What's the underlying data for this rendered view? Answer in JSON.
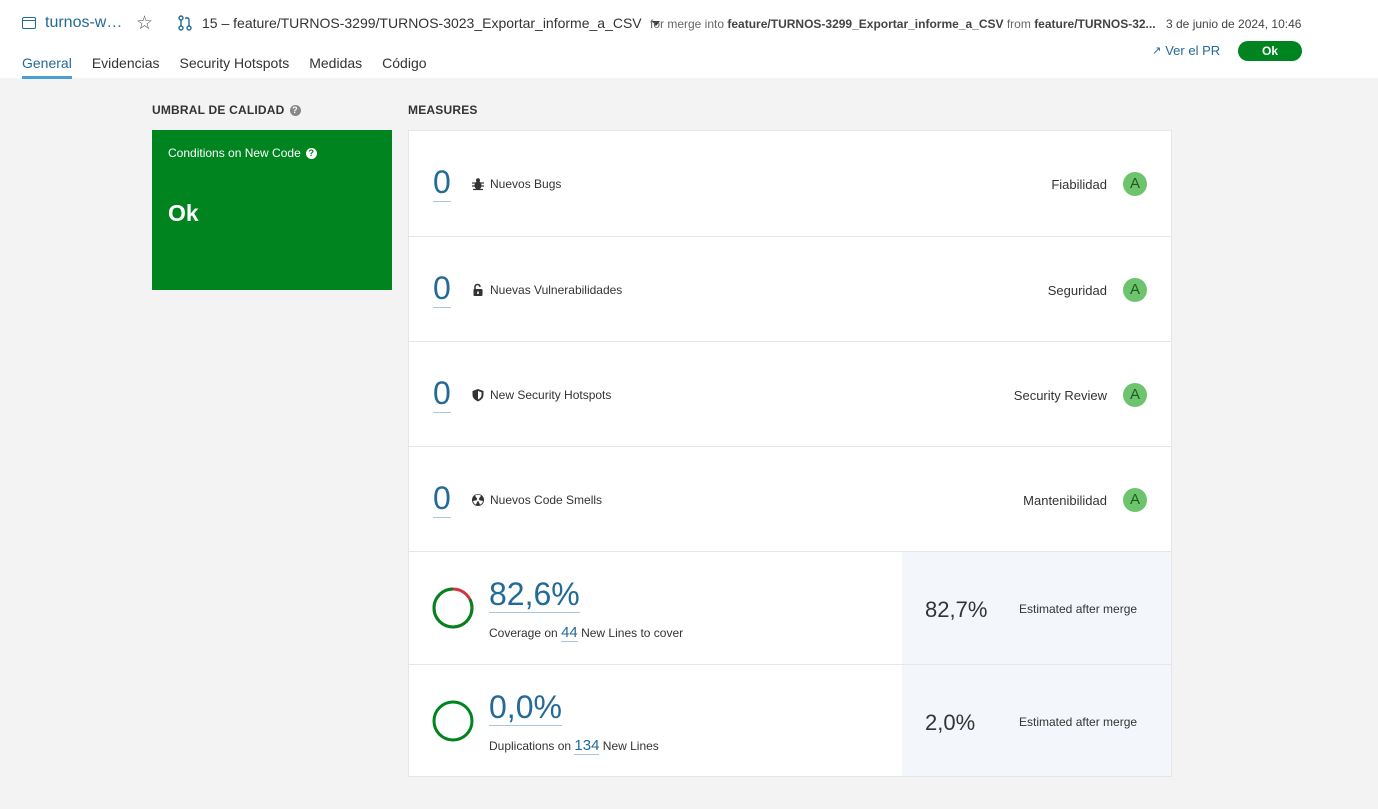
{
  "header": {
    "project_name": "turnos-w…",
    "branch_label": "15 – feature/TURNOS-3299/TURNOS-3023_Exportar_informe_a_CSV",
    "merge_prefix": "for merge into",
    "merge_target": "feature/TURNOS-3299_Exportar_informe_a_CSV",
    "merge_from_prefix": "from",
    "merge_source": "feature/TURNOS-32...",
    "date": "3 de junio de 2024, 10:46",
    "view_pr": "Ver el PR",
    "status": "Ok"
  },
  "tabs": [
    {
      "label": "General"
    },
    {
      "label": "Evidencias"
    },
    {
      "label": "Security Hotspots"
    },
    {
      "label": "Medidas"
    },
    {
      "label": "Código"
    }
  ],
  "quality_gate": {
    "title": "UMBRAL DE CALIDAD",
    "conditions_label": "Conditions on New Code",
    "status": "Ok"
  },
  "measures": {
    "title": "MEASURES",
    "rows": [
      {
        "value": "0",
        "label": "Nuevos Bugs",
        "category": "Fiabilidad",
        "rating": "A",
        "icon": "bug-icon"
      },
      {
        "value": "0",
        "label": "Nuevas Vulnerabilidades",
        "category": "Seguridad",
        "rating": "A",
        "icon": "lock-icon"
      },
      {
        "value": "0",
        "label": "New Security Hotspots",
        "category": "Security Review",
        "rating": "A",
        "icon": "shield-icon"
      },
      {
        "value": "0",
        "label": "Nuevos Code Smells",
        "category": "Mantenibilidad",
        "rating": "A",
        "icon": "code-smell-icon"
      }
    ],
    "coverage": {
      "value": "82,6%",
      "fraction": 0.826,
      "prefix": "Coverage on",
      "lines": "44",
      "suffix": "New Lines to cover",
      "after_value": "82,7%",
      "after_label": "Estimated after merge"
    },
    "duplications": {
      "value": "0,0%",
      "prefix": "Duplications on",
      "lines": "134",
      "suffix": "New Lines",
      "after_value": "2,0%",
      "after_label": "Estimated after merge"
    }
  },
  "colors": {
    "ok_green": "#00841f",
    "link_blue": "#236a97",
    "rating_a": "#6ec36e",
    "coverage_gap": "#d4333f"
  }
}
